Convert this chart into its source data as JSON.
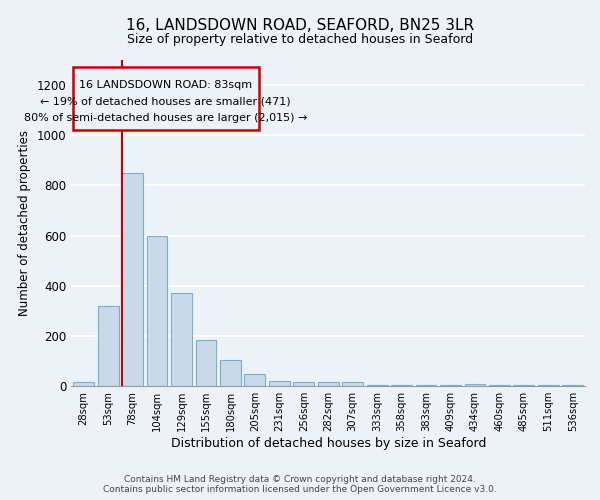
{
  "title1": "16, LANDSDOWN ROAD, SEAFORD, BN25 3LR",
  "title2": "Size of property relative to detached houses in Seaford",
  "xlabel": "Distribution of detached houses by size in Seaford",
  "ylabel": "Number of detached properties",
  "bar_labels": [
    "28sqm",
    "53sqm",
    "78sqm",
    "104sqm",
    "129sqm",
    "155sqm",
    "180sqm",
    "205sqm",
    "231sqm",
    "256sqm",
    "282sqm",
    "307sqm",
    "333sqm",
    "358sqm",
    "383sqm",
    "409sqm",
    "434sqm",
    "460sqm",
    "485sqm",
    "511sqm",
    "536sqm"
  ],
  "bar_values": [
    15,
    320,
    850,
    600,
    370,
    185,
    105,
    48,
    22,
    15,
    18,
    18,
    5,
    5,
    5,
    5,
    10,
    3,
    3,
    3,
    3
  ],
  "bar_color": "#c9d9ea",
  "bar_edge_color": "#7aafc8",
  "background_color": "#edf2f8",
  "grid_color": "#ffffff",
  "ylim": [
    0,
    1300
  ],
  "yticks": [
    0,
    200,
    400,
    600,
    800,
    1000,
    1200
  ],
  "annotation_line1": "16 LANDSDOWN ROAD: 83sqm",
  "annotation_line2": "← 19% of detached houses are smaller (471)",
  "annotation_line3": "80% of semi-detached houses are larger (2,015) →",
  "redline_bar_index": 2,
  "redline_color": "#cc0000",
  "footnote1": "Contains HM Land Registry data © Crown copyright and database right 2024.",
  "footnote2": "Contains public sector information licensed under the Open Government Licence v3.0."
}
